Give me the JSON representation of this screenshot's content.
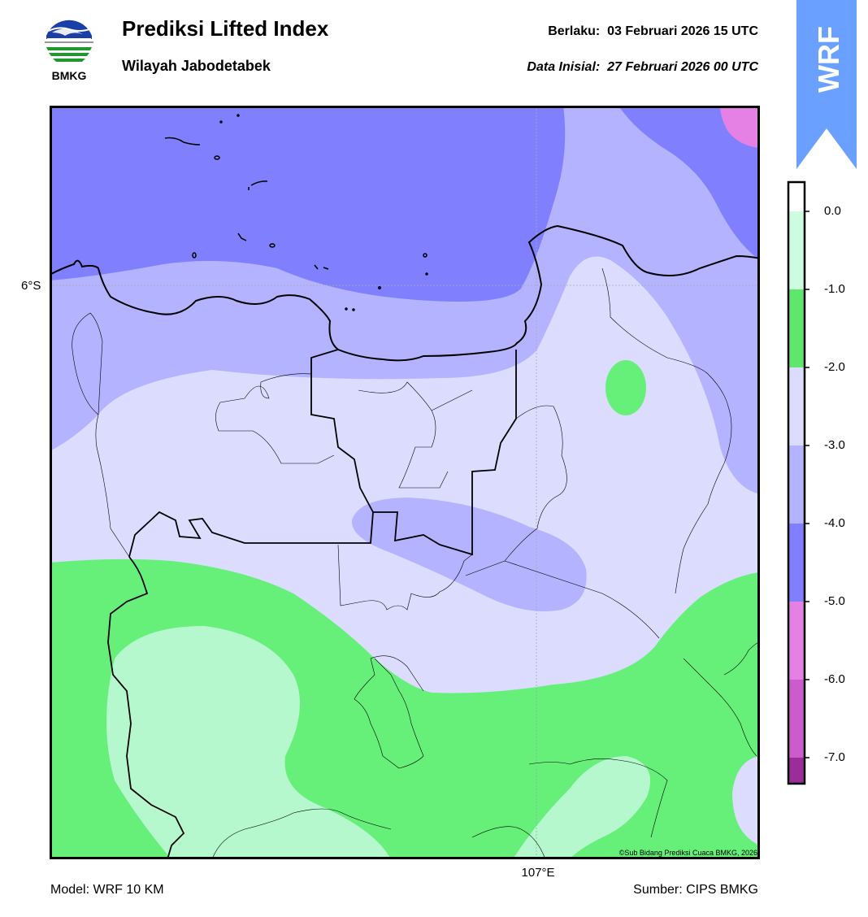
{
  "header": {
    "logo_text": "BMKG",
    "title": "Prediksi Lifted Index",
    "subtitle": "Wilayah Jabodetabek",
    "valid_label": "Berlaku:",
    "valid_value": "03 Februari 2026 15 UTC",
    "init_label": "Data Inisial:",
    "init_value": "27 Februari 2026 00 UTC",
    "ribbon_text": "WRF"
  },
  "map": {
    "lat_label": "6°S",
    "lon_label": "107°E",
    "copyright": "©Sub Bidang Prediksi Cuaca BMKG, 2026",
    "colors": {
      "zone_-5_-4": "#8080ff",
      "zone_-4_-3": "#b3b3ff",
      "zone_-3_-2": "#dcdcff",
      "zone_-2_-1": "#66f07a",
      "zone_-1_0": "#b5f8cd",
      "zone_-6_-5": "#e580e5",
      "coastline": "#000000"
    }
  },
  "legend": {
    "ticks": [
      "0.0",
      "-1.0",
      "-2.0",
      "-3.0",
      "-4.0",
      "-5.0",
      "-6.0",
      "-7.0"
    ],
    "colors": [
      "#ffffff",
      "#ccfde0",
      "#5ee66d",
      "#dcdcff",
      "#b3b3ff",
      "#7f7fff",
      "#e580e5",
      "#cc5ccc",
      "#9b2d9b"
    ]
  },
  "footer": {
    "model": "Model: WRF 10 KM",
    "source": "Sumber: CIPS BMKG"
  }
}
